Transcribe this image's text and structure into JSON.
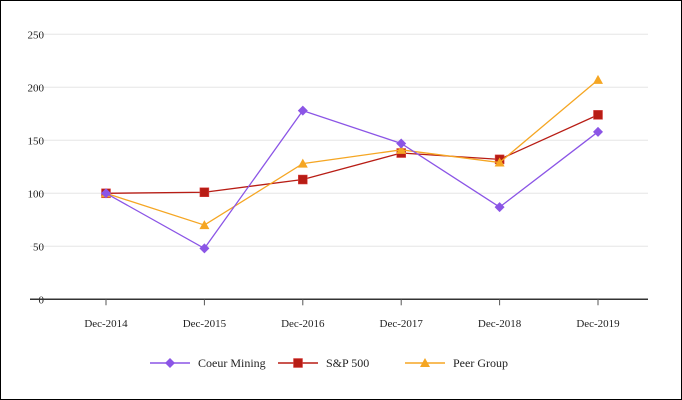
{
  "chart_data": {
    "type": "line",
    "title": "",
    "xlabel": "",
    "ylabel": "",
    "categories": [
      "Dec-2014",
      "Dec-2015",
      "Dec-2016",
      "Dec-2017",
      "Dec-2018",
      "Dec-2019"
    ],
    "yticks": [
      "0",
      "50",
      "100",
      "150",
      "200",
      "250"
    ],
    "ylim": [
      0,
      250
    ],
    "grid": true,
    "legend_position": "bottom",
    "series": [
      {
        "name": "Coeur Mining",
        "values": [
          100,
          48,
          178,
          147,
          87,
          158
        ],
        "color": "#8b55e6",
        "marker": "diamond"
      },
      {
        "name": "S&P 500",
        "values": [
          100,
          101,
          113,
          138,
          132,
          174
        ],
        "color": "#b81d15",
        "marker": "square"
      },
      {
        "name": "Peer Group",
        "values": [
          100,
          70,
          128,
          141,
          129,
          207
        ],
        "color": "#f5a623",
        "marker": "triangle"
      }
    ]
  }
}
